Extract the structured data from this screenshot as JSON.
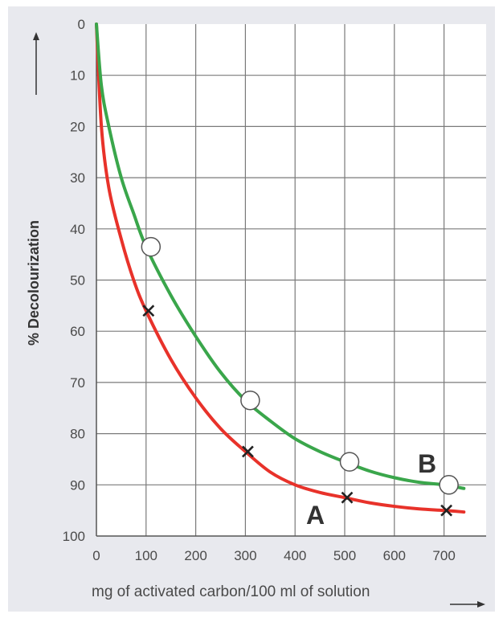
{
  "chart_data": {
    "type": "line",
    "xlabel": "mg of activated carbon/100 ml of solution",
    "ylabel": "% Decolourization",
    "x_ticks": [
      "0",
      "100",
      "200",
      "300",
      "400",
      "500",
      "600",
      "700"
    ],
    "y_ticks": [
      "0",
      "10",
      "20",
      "30",
      "40",
      "50",
      "60",
      "70",
      "80",
      "90",
      "100"
    ],
    "xlim": [
      0,
      750
    ],
    "ylim": [
      0,
      100
    ],
    "y_axis_inverted": true,
    "grid": true,
    "series": [
      {
        "name": "A",
        "color": "#e8322a",
        "marker": "cross",
        "x": [
          0,
          100,
          300,
          500,
          700
        ],
        "y": [
          0,
          56,
          83.5,
          92.5,
          95
        ],
        "curve": [
          [
            0,
            0
          ],
          [
            10,
            20
          ],
          [
            25,
            32
          ],
          [
            50,
            42
          ],
          [
            75,
            50
          ],
          [
            100,
            56
          ],
          [
            150,
            65.5
          ],
          [
            200,
            73
          ],
          [
            250,
            79
          ],
          [
            300,
            83.5
          ],
          [
            350,
            87.5
          ],
          [
            400,
            90
          ],
          [
            450,
            91.5
          ],
          [
            500,
            92.5
          ],
          [
            550,
            93.5
          ],
          [
            600,
            94.2
          ],
          [
            650,
            94.7
          ],
          [
            700,
            95
          ],
          [
            740,
            95.3
          ]
        ]
      },
      {
        "name": "B",
        "color": "#3aa64b",
        "marker": "circle",
        "x": [
          0,
          100,
          300,
          500,
          700
        ],
        "y": [
          0,
          43.5,
          73.5,
          85.5,
          90
        ],
        "curve": [
          [
            0,
            0
          ],
          [
            10,
            12
          ],
          [
            25,
            20
          ],
          [
            50,
            30
          ],
          [
            75,
            37
          ],
          [
            100,
            43.5
          ],
          [
            150,
            53
          ],
          [
            200,
            61
          ],
          [
            250,
            68
          ],
          [
            300,
            73.5
          ],
          [
            350,
            77.5
          ],
          [
            400,
            81
          ],
          [
            450,
            83.5
          ],
          [
            500,
            85.5
          ],
          [
            550,
            87.3
          ],
          [
            600,
            88.6
          ],
          [
            650,
            89.5
          ],
          [
            700,
            90
          ],
          [
            740,
            90.7
          ]
        ]
      }
    ]
  }
}
